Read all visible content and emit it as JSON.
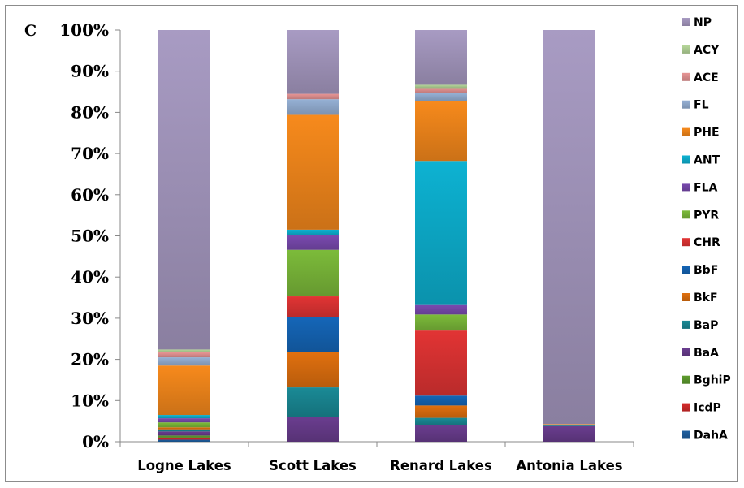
{
  "panel_label": "C",
  "chart_data": {
    "type": "bar",
    "stacked": true,
    "normalized": true,
    "categories": [
      "Logne Lakes",
      "Scott Lakes",
      "Renard Lakes",
      "Antonia Lakes"
    ],
    "ylim": [
      0,
      100
    ],
    "y_ticks": [
      "0%",
      "10%",
      "20%",
      "30%",
      "40%",
      "50%",
      "60%",
      "70%",
      "80%",
      "90%",
      "100%"
    ],
    "legend_position": "right",
    "series": [
      {
        "name": "DahA",
        "color": "#1f5fa0",
        "values": [
          0.5,
          0,
          0,
          0
        ]
      },
      {
        "name": "IcdP",
        "color": "#d62b2b",
        "values": [
          0.5,
          0,
          0,
          0
        ]
      },
      {
        "name": "BghiP",
        "color": "#5e9c2e",
        "values": [
          0.5,
          0,
          0,
          0
        ]
      },
      {
        "name": "BaA",
        "color": "#6a3d8f",
        "values": [
          1.0,
          6.0,
          4.0,
          3.8
        ]
      },
      {
        "name": "BaP",
        "color": "#1a8a96",
        "values": [
          0.5,
          7.2,
          1.8,
          0.2
        ]
      },
      {
        "name": "BkF",
        "color": "#e0700f",
        "values": [
          0.5,
          8.5,
          3.0,
          0.2
        ]
      },
      {
        "name": "BbF",
        "color": "#1566b8",
        "values": [
          0,
          8.5,
          2.4,
          0
        ]
      },
      {
        "name": "CHR",
        "color": "#e23434",
        "values": [
          0,
          5.1,
          15.8,
          0
        ]
      },
      {
        "name": "PYR",
        "color": "#7cbb3a",
        "values": [
          1.2,
          11.3,
          3.9,
          0
        ]
      },
      {
        "name": "FLA",
        "color": "#7a4ab0",
        "values": [
          1.0,
          3.5,
          2.3,
          0
        ]
      },
      {
        "name": "ANT",
        "color": "#0db2d2",
        "values": [
          0.8,
          1.4,
          35.0,
          0
        ]
      },
      {
        "name": "PHE",
        "color": "#f78a1c",
        "values": [
          12.0,
          27.9,
          14.6,
          0.1
        ]
      },
      {
        "name": "FL",
        "color": "#96b1d6",
        "values": [
          2.0,
          3.8,
          1.9,
          0
        ]
      },
      {
        "name": "ACE",
        "color": "#e79595",
        "values": [
          1.2,
          1.3,
          1.2,
          0
        ]
      },
      {
        "name": "ACY",
        "color": "#b6d79a",
        "values": [
          0.7,
          0,
          0.8,
          0
        ]
      },
      {
        "name": "NP",
        "color": "#a89bc3",
        "values": [
          77.6,
          15.5,
          13.3,
          95.7
        ]
      }
    ]
  }
}
